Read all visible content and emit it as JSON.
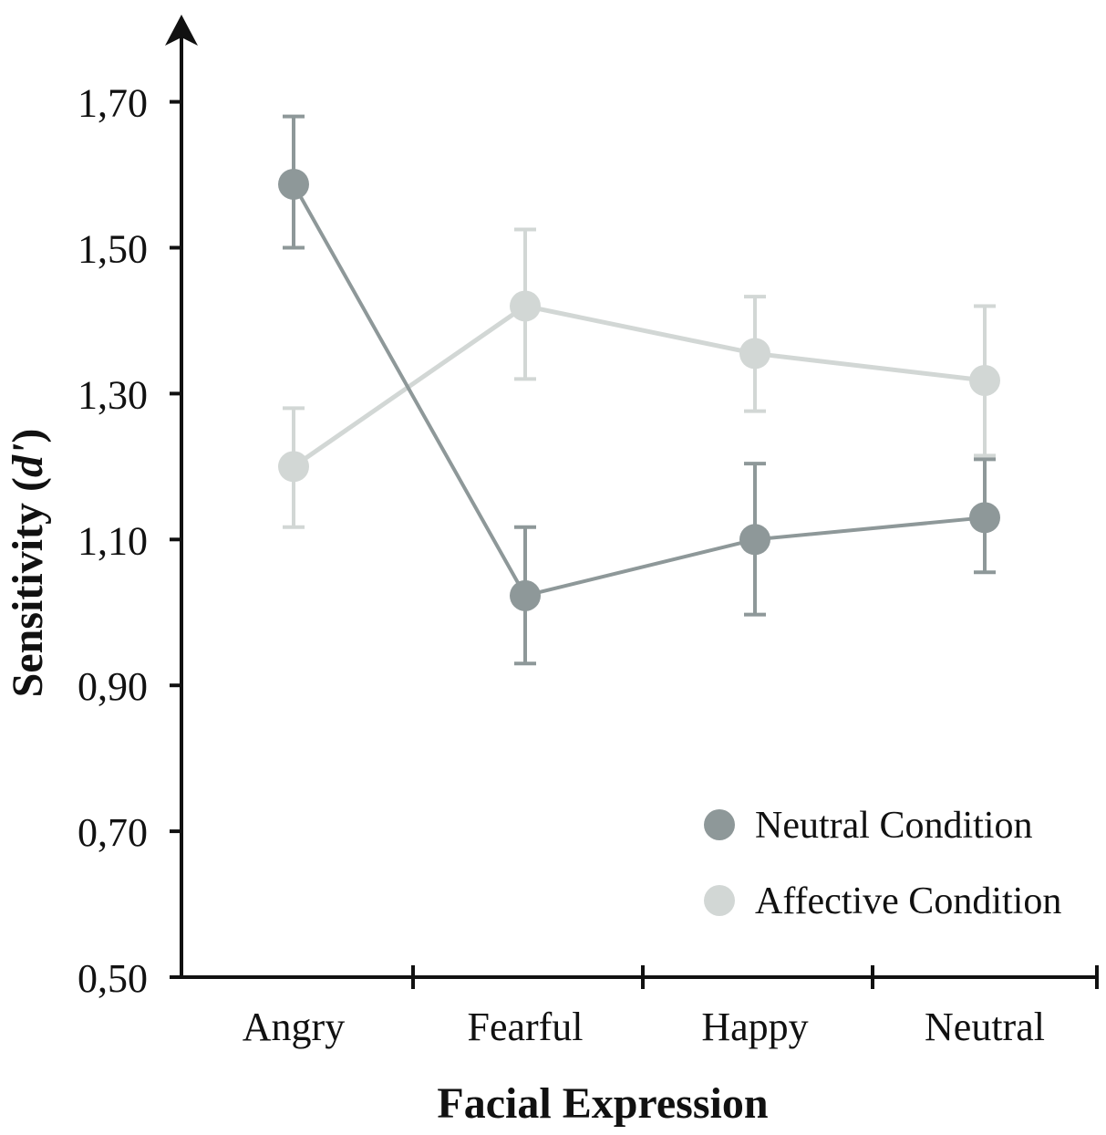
{
  "chart_data": {
    "type": "line",
    "title": "",
    "xlabel": "Facial Expression",
    "ylabel": "Sensitivity (d')",
    "ylabel_main": "Sensitivity (",
    "ylabel_italic": "d'",
    "ylabel_close": ")",
    "ylim": [
      0.5,
      1.8
    ],
    "yticks": [
      0.5,
      0.7,
      0.9,
      1.1,
      1.3,
      1.5,
      1.7
    ],
    "ytick_labels": [
      "0,50",
      "0,70",
      "0,90",
      "1,10",
      "1,30",
      "1,50",
      "1,70"
    ],
    "categories": [
      "Angry",
      "Fearful",
      "Happy",
      "Neutral"
    ],
    "legend_position": "bottom-right",
    "series": [
      {
        "name": "Neutral Condition",
        "color": "#8e9899",
        "values": [
          1.587,
          1.023,
          1.1,
          1.13
        ],
        "err_upper": [
          1.68,
          1.117,
          1.204,
          1.21
        ],
        "err_lower": [
          1.5,
          0.93,
          0.997,
          1.055
        ]
      },
      {
        "name": "Affective Condition",
        "color": "#d2d7d5",
        "values": [
          1.2,
          1.42,
          1.355,
          1.318
        ],
        "err_upper": [
          1.28,
          1.525,
          1.433,
          1.42
        ],
        "err_lower": [
          1.117,
          1.32,
          1.276,
          1.215
        ]
      }
    ]
  }
}
